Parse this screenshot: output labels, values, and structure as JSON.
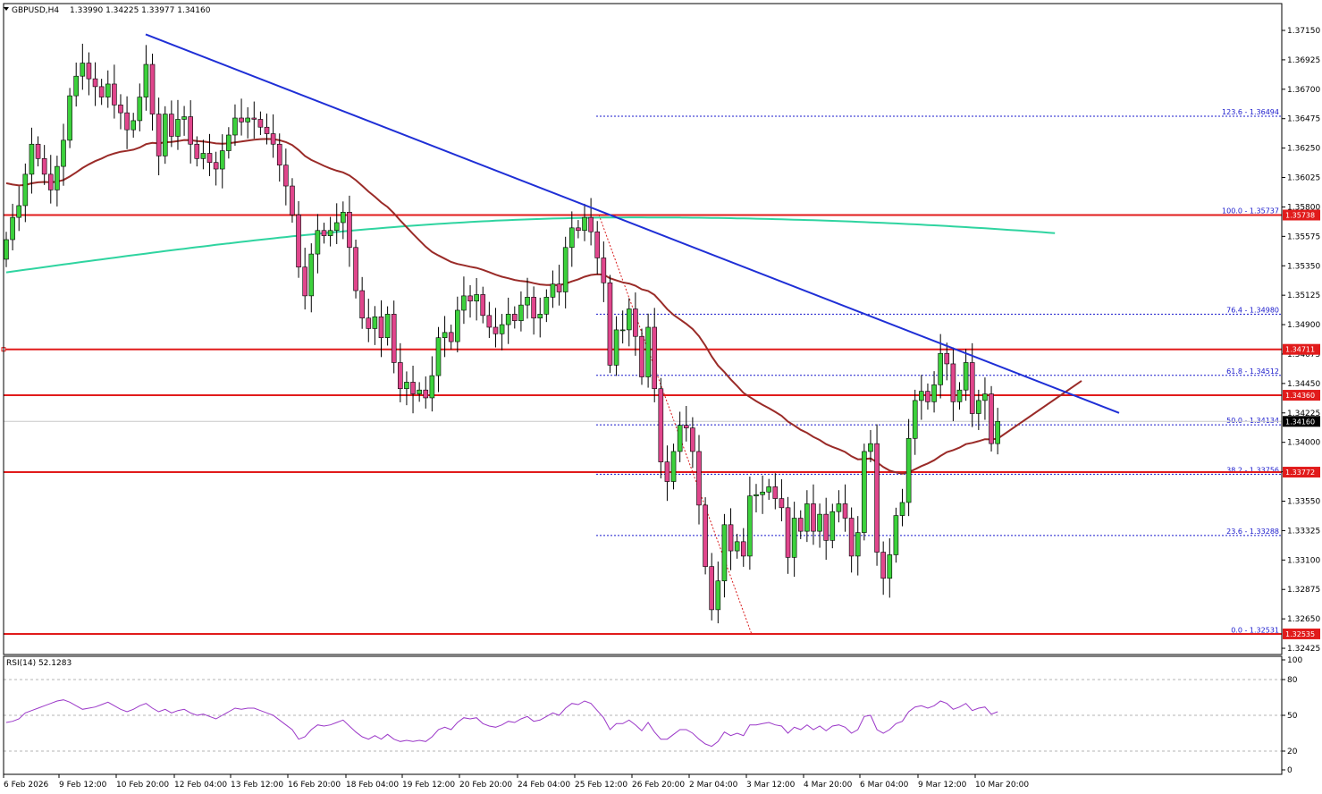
{
  "header": {
    "symbol": "GBPUSD,H4",
    "ohlc": "1.33990 1.34225 1.33977 1.34160"
  },
  "rsi": {
    "label": "RSI(14) 52.1283",
    "levels": [
      "100",
      "80",
      "50",
      "20",
      "0"
    ]
  },
  "colors": {
    "bull": "#3cd13c",
    "bear": "#e0468c",
    "wick": "#000000",
    "support": "#e11b1b",
    "trendline": "#1f2fd6",
    "ma_fast": "#9a2b28",
    "ma_slow": "#2fd4a0",
    "rsi_line": "#9b38c8",
    "fib": "#1a1acc"
  },
  "chart_data": {
    "type": "candlestick",
    "symbol": "GBPUSD",
    "timeframe": "H4",
    "ylim": [
      1.3238,
      1.373
    ],
    "y_ticks": [
      "1.37150",
      "1.36925",
      "1.36700",
      "1.36475",
      "1.36250",
      "1.36025",
      "1.35800",
      "1.35575",
      "1.35350",
      "1.35125",
      "1.34900",
      "1.34675",
      "1.34450",
      "1.34225",
      "1.34000",
      "1.33775",
      "1.33550",
      "1.33325",
      "1.33100",
      "1.32875",
      "1.32650",
      "1.32425"
    ],
    "x_ticks": [
      "6 Feb 2026",
      "9 Feb 12:00",
      "10 Feb 20:00",
      "12 Feb 04:00",
      "13 Feb 12:00",
      "16 Feb 20:00",
      "18 Feb 04:00",
      "19 Feb 12:00",
      "20 Feb 20:00",
      "24 Feb 04:00",
      "25 Feb 12:00",
      "26 Feb 20:00",
      "2 Mar 04:00",
      "3 Mar 12:00",
      "4 Mar 20:00",
      "6 Mar 04:00",
      "9 Mar 12:00",
      "10 Mar 20:00"
    ],
    "closes": [
      1.3555,
      1.3572,
      1.3581,
      1.3605,
      1.3628,
      1.3617,
      1.3605,
      1.3593,
      1.3611,
      1.3631,
      1.3665,
      1.368,
      1.369,
      1.3678,
      1.3672,
      1.3664,
      1.3674,
      1.3658,
      1.3652,
      1.3639,
      1.3646,
      1.3664,
      1.3689,
      1.3651,
      1.3619,
      1.3651,
      1.3634,
      1.3647,
      1.3649,
      1.3628,
      1.3617,
      1.3621,
      1.3614,
      1.3609,
      1.3623,
      1.3635,
      1.3648,
      1.3645,
      1.3648,
      1.3647,
      1.3641,
      1.3636,
      1.3628,
      1.3612,
      1.3596,
      1.3574,
      1.3534,
      1.3512,
      1.3544,
      1.3562,
      1.3558,
      1.3562,
      1.3568,
      1.3576,
      1.3549,
      1.3516,
      1.3495,
      1.3487,
      1.3496,
      1.348,
      1.3498,
      1.3461,
      1.3441,
      1.3446,
      1.3437,
      1.344,
      1.3434,
      1.3451,
      1.348,
      1.3484,
      1.3477,
      1.3501,
      1.3512,
      1.3508,
      1.3513,
      1.3497,
      1.3488,
      1.3483,
      1.349,
      1.3498,
      1.3493,
      1.3505,
      1.3511,
      1.3495,
      1.3498,
      1.3511,
      1.3521,
      1.3515,
      1.3549,
      1.3564,
      1.3562,
      1.3572,
      1.3561,
      1.3541,
      1.3522,
      1.3459,
      1.3486,
      1.3486,
      1.3502,
      1.3481,
      1.345,
      1.3488,
      1.3441,
      1.3385,
      1.337,
      1.3393,
      1.3413,
      1.3411,
      1.3393,
      1.3352,
      1.3305,
      1.3272,
      1.3294,
      1.3337,
      1.3317,
      1.3324,
      1.3313,
      1.3359,
      1.336,
      1.3362,
      1.3366,
      1.3357,
      1.335,
      1.3312,
      1.3342,
      1.3332,
      1.3353,
      1.3332,
      1.3345,
      1.3325,
      1.3347,
      1.3353,
      1.3342,
      1.3313,
      1.3331,
      1.3393,
      1.3399,
      1.3316,
      1.3296,
      1.3314,
      1.3344,
      1.3354,
      1.3403,
      1.3432,
      1.3439,
      1.3431,
      1.3444,
      1.3468,
      1.346,
      1.3431,
      1.344,
      1.3461,
      1.3422,
      1.3432,
      1.3437,
      1.3399,
      1.3416
    ],
    "candle_note": "Approximately 157 H4 candles from 6 Feb 2026 to 10 Mar 2026; closes read off the price axis.",
    "ma_slow": {
      "start": 1.353,
      "peak": 1.3572,
      "end": 1.356
    },
    "horizontal_levels": [
      {
        "price": 1.35738,
        "tag": "1.35738"
      },
      {
        "price": 1.34711,
        "tag": "1.34711"
      },
      {
        "price": 1.3436,
        "tag": "1.34360"
      },
      {
        "price": 1.33772,
        "tag": "1.33772"
      },
      {
        "price": 1.32535,
        "tag": "1.32535"
      }
    ],
    "current_price": "1.34160",
    "fibonacci": [
      {
        "label": "123.6 - 1.36494",
        "price": 1.36494
      },
      {
        "label": "100.0 - 1.35737",
        "price": 1.35737
      },
      {
        "label": "76.4 - 1.34980",
        "price": 1.3498
      },
      {
        "label": "61.8 - 1.34512",
        "price": 1.34512
      },
      {
        "label": "50.0 - 1.34134",
        "price": 1.34134
      },
      {
        "label": "38.2 - 1.33756",
        "price": 1.33756
      },
      {
        "label": "23.6 - 1.33288",
        "price": 1.33288
      },
      {
        "label": "0.0 - 1.32531",
        "price": 1.32531
      }
    ],
    "trendline": {
      "from_price": 1.3712,
      "to_price": 1.34225
    },
    "rsi_values": [
      44,
      45,
      47,
      52,
      54,
      56,
      58,
      60,
      62,
      63,
      61,
      58,
      55,
      56,
      57,
      59,
      61,
      58,
      55,
      53,
      55,
      58,
      60,
      56,
      53,
      55,
      52,
      54,
      55,
      52,
      50,
      51,
      49,
      47,
      50,
      53,
      56,
      55,
      56,
      56,
      54,
      52,
      50,
      46,
      42,
      38,
      30,
      32,
      38,
      42,
      41,
      42,
      44,
      46,
      41,
      36,
      32,
      30,
      33,
      30,
      34,
      30,
      28,
      29,
      28,
      29,
      28,
      32,
      38,
      40,
      38,
      44,
      48,
      47,
      48,
      43,
      41,
      40,
      42,
      45,
      44,
      47,
      49,
      45,
      46,
      49,
      52,
      50,
      56,
      60,
      59,
      62,
      60,
      54,
      48,
      38,
      43,
      43,
      46,
      42,
      37,
      44,
      36,
      30,
      30,
      34,
      38,
      38,
      35,
      30,
      26,
      24,
      28,
      36,
      33,
      35,
      33,
      42,
      42,
      43,
      44,
      42,
      41,
      35,
      40,
      38,
      42,
      38,
      41,
      37,
      41,
      42,
      40,
      35,
      38,
      49,
      50,
      38,
      35,
      38,
      43,
      45,
      53,
      57,
      58,
      56,
      58,
      62,
      60,
      55,
      57,
      60,
      54,
      56,
      57,
      51,
      53
    ]
  }
}
